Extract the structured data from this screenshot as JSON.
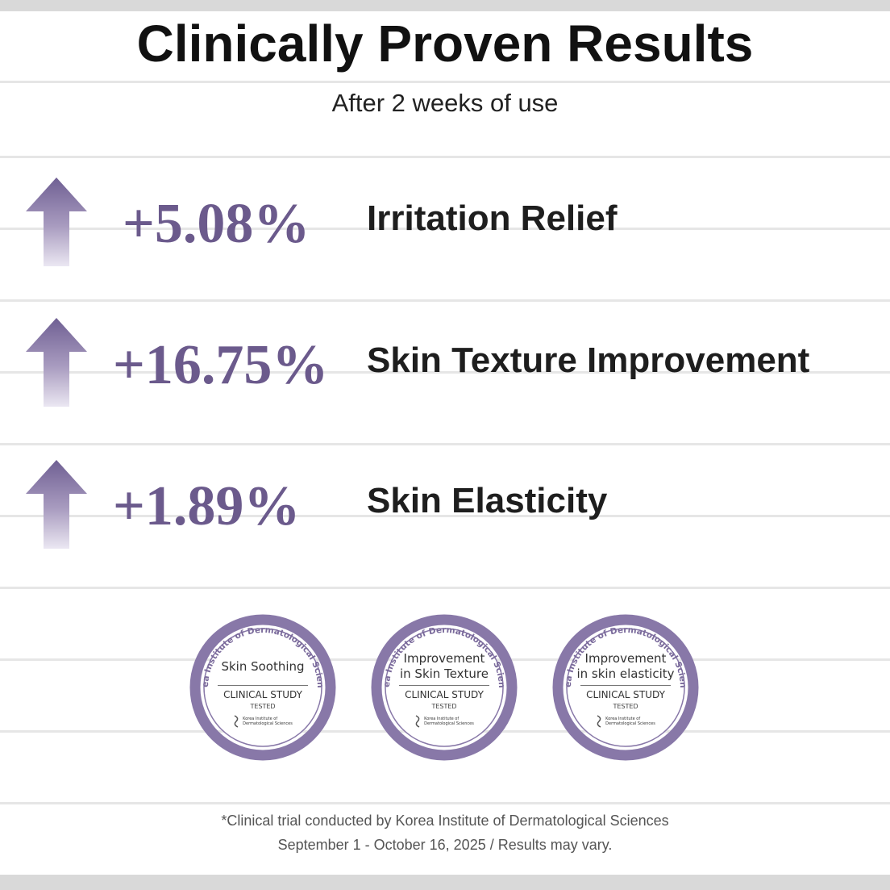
{
  "title": "Clinically Proven Results",
  "subtitle": "After 2 weeks of use",
  "colors": {
    "accent": "#6b5a8c",
    "arrow": "#7a6a9b",
    "badge_ring": "#8878a8",
    "text_dark": "#1e1e1e",
    "line": "#e6e6e6"
  },
  "stats": [
    {
      "value": "+5.08%",
      "label": "Irritation Relief",
      "icon": "up-arrow-icon"
    },
    {
      "value": "+16.75%",
      "label": "Skin Texture Improvement",
      "icon": "up-arrow-icon"
    },
    {
      "value": "+1.89%",
      "label": "Skin Elasticity",
      "icon": "up-arrow-icon"
    }
  ],
  "badges": [
    {
      "ring_text": "Korea Institute of Dermatological Sciences",
      "title": "Skin Soothing",
      "study": "CLINICAL STUDY",
      "tested": "TESTED",
      "institute": "Korea Institute of\nDermatological Sciences"
    },
    {
      "ring_text": "Korea Institute of Dermatological Sciences",
      "title": "Improvement\nin Skin Texture",
      "study": "CLINICAL STUDY",
      "tested": "TESTED",
      "institute": "Korea Institute of\nDermatological Sciences"
    },
    {
      "ring_text": "Korea Institute of Dermatological Sciences",
      "title": "Improvement\nin skin elasticity",
      "study": "CLINICAL STUDY",
      "tested": "TESTED",
      "institute": "Korea Institute of\nDermatological Sciences"
    }
  ],
  "footnote": {
    "line1": "*Clinical trial conducted by Korea Institute of Dermatological Sciences",
    "line2": "September 1 - October 16, 2025 / Results may vary."
  }
}
